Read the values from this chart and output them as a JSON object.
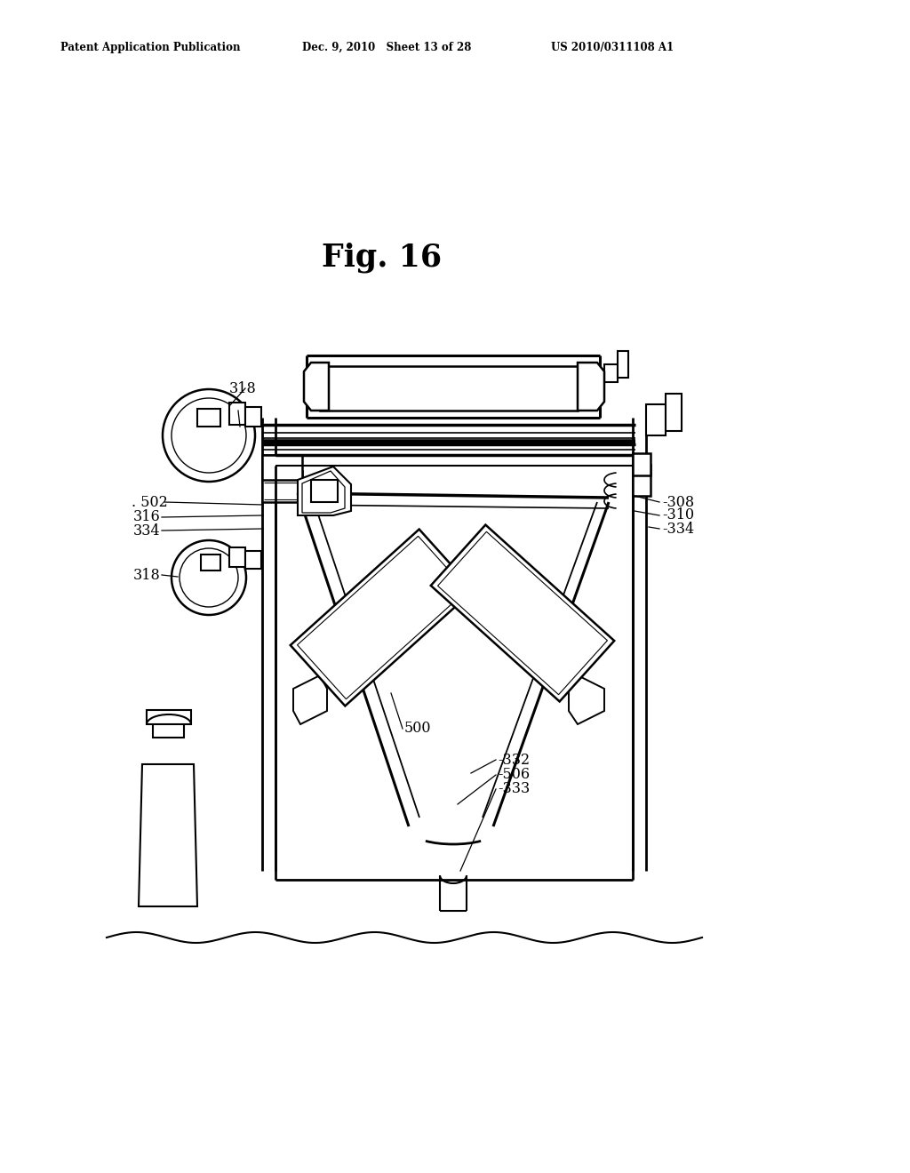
{
  "title": "Fig. 16",
  "header_left": "Patent Application Publication",
  "header_mid": "Dec. 9, 2010   Sheet 13 of 28",
  "header_right": "US 2010/0311108 A1",
  "bg_color": "#ffffff",
  "line_color": "#000000",
  "labels": {
    "318_top": "318",
    "502": ". 502",
    "316": "316",
    "334_left": "334",
    "318_bot": "318",
    "308": "308",
    "310": "310",
    "334_right": "334",
    "500": "500",
    "332": "-332",
    "506": "-506",
    "333": "-333"
  }
}
